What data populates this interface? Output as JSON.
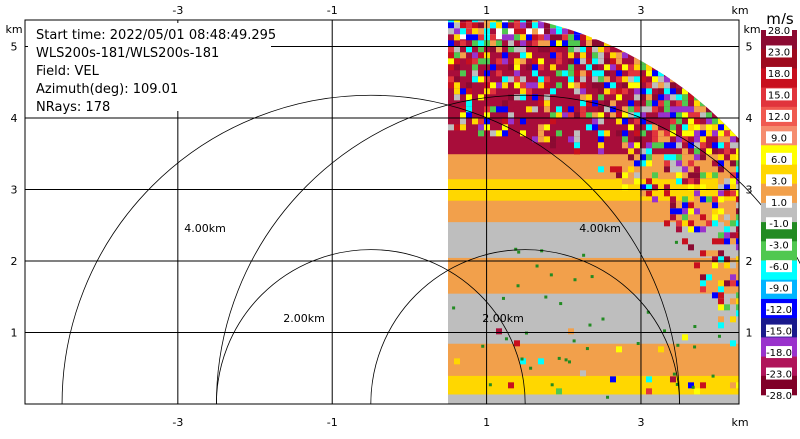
{
  "info": {
    "lines": [
      "Start time: 2022/05/01 08:48:49.295",
      "WLS200s-181/WLS200s-181",
      "Field: VEL",
      "Azimuth(deg): 109.01",
      "NRays: 178"
    ]
  },
  "chart_data": {
    "type": "heatmap",
    "title": "",
    "x_unit_label": "km",
    "y_unit_label": "km",
    "xlim": [
      -4.98,
      4.27
    ],
    "ylim": [
      0,
      5.37
    ],
    "x_ticks": [
      -3,
      -1,
      1,
      3
    ],
    "x_tick_labels": [
      "-3",
      "-1",
      "1",
      "3"
    ],
    "y_ticks": [
      1,
      2,
      3,
      4,
      5
    ],
    "y_tick_labels": [
      "1",
      "2",
      "3",
      "4",
      "5"
    ],
    "grid": true,
    "sector": {
      "max_range_km": 5.1,
      "x_start_km": 0.5
    },
    "range_rings": [
      {
        "label": "2.00km",
        "radius_km": 2.0,
        "center_x_km": -0.5
      },
      {
        "label": "4.00km",
        "radius_km": 4.0,
        "center_x_km": -0.5
      },
      {
        "label": "2.00km",
        "radius_km": 2.0,
        "center_x_km": 1.5
      },
      {
        "label": "4.00km",
        "radius_km": 4.0,
        "center_x_km": 1.5
      }
    ],
    "bands": [
      {
        "y0": 0.0,
        "y1": 0.14,
        "color": "#bebebe"
      },
      {
        "y0": 0.14,
        "y1": 0.4,
        "color": "#ffd700"
      },
      {
        "y0": 0.4,
        "y1": 0.85,
        "color": "#f2a04b"
      },
      {
        "y0": 0.85,
        "y1": 1.55,
        "color": "#bebebe"
      },
      {
        "y0": 1.55,
        "y1": 2.05,
        "color": "#f2a04b"
      },
      {
        "y0": 2.05,
        "y1": 2.55,
        "color": "#bebebe"
      },
      {
        "y0": 2.55,
        "y1": 2.85,
        "color": "#f2a04b"
      },
      {
        "y0": 2.85,
        "y1": 3.15,
        "color": "#ffd700"
      },
      {
        "y0": 3.15,
        "y1": 3.5,
        "color": "#f2a04b"
      },
      {
        "y0": 3.5,
        "y1": 5.1,
        "color": "#a80d3a"
      }
    ],
    "colorbar": {
      "unit": "m/s",
      "labels": [
        "28.0",
        "23.0",
        "18.0",
        "15.0",
        "12.0",
        "9.0",
        "6.0",
        "3.0",
        "1.0",
        "-1.0",
        "-3.0",
        "-6.0",
        "-9.0",
        "-12.0",
        "-15.0",
        "-18.0",
        "-23.0",
        "-28.0"
      ],
      "colors": [
        "#8b0a32",
        "#9e0b1e",
        "#c80f1e",
        "#e1343c",
        "#f05a50",
        "#f58c6e",
        "#ffff00",
        "#ffd700",
        "#f2a04b",
        "#bebebe",
        "#228b22",
        "#50c850",
        "#00ffff",
        "#00b4ff",
        "#0000ff",
        "#1a1a8c",
        "#9932cc",
        "#b0145a",
        "#800028"
      ]
    }
  }
}
